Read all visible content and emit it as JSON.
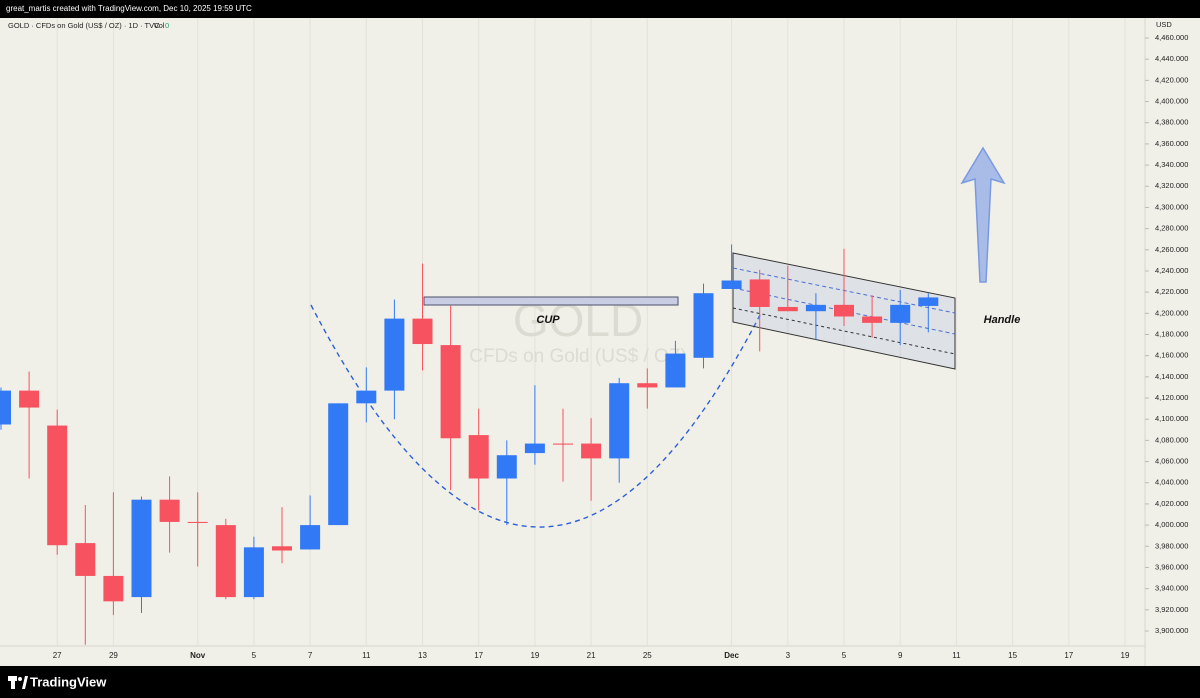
{
  "chart_data": {
    "type": "candlestick",
    "credit": "great_martis created with TradingView.com, Dec 10, 2025 19:59 UTC",
    "legend": "GOLD · CFDs on Gold (US$ / OZ) · 1D · TVC",
    "indicator": "Vol",
    "indicator_value": "0",
    "watermark_symbol": "GOLD",
    "watermark_description": "CFDs on Gold (US$ / OZ)",
    "currency": "USD",
    "brand": "TradingView",
    "annotations": [
      {
        "text": "CUP"
      },
      {
        "text": "Handle"
      }
    ],
    "categories": [
      null,
      null,
      "27",
      null,
      "29",
      null,
      null,
      "Nov",
      null,
      "5",
      null,
      "7",
      null,
      "11",
      null,
      "13",
      null,
      "17",
      null,
      "19",
      null,
      "21",
      null,
      "25",
      null,
      null,
      "Dec",
      null,
      "3",
      null,
      "5",
      null,
      "9",
      null,
      "11",
      null,
      "15",
      null,
      "17",
      null,
      "19"
    ],
    "series": {
      "up_color": "#3179f5",
      "down_color": "#f7525f",
      "open": [
        4095,
        4127,
        4094,
        3983,
        3952,
        3932,
        4024,
        4003,
        4000,
        3932,
        3980,
        3977,
        4000,
        4115,
        4127,
        4195,
        4170,
        4085,
        4044,
        4068,
        4077,
        4077,
        4063,
        4134,
        4130,
        4158,
        4223,
        4232,
        4206,
        4202,
        4208,
        4197,
        4191,
        4207,
        null,
        null,
        null,
        null,
        null,
        null,
        null
      ],
      "high": [
        4130,
        4145,
        4109,
        4019,
        4031,
        4027,
        4046,
        4031,
        4006,
        3989,
        4017,
        4028,
        4115,
        4149,
        4213,
        4247,
        4207,
        4110,
        4080,
        4132,
        4110,
        4101,
        4139,
        4148,
        4174,
        4228,
        4265,
        4241,
        4245,
        4219,
        4261,
        4217,
        4222,
        4219,
        null,
        null,
        null,
        null,
        null,
        null,
        null
      ],
      "low": [
        4090,
        4044,
        3972,
        3887,
        3915,
        3917,
        3974,
        3961,
        3930,
        3930,
        3964,
        3977,
        4000,
        4097,
        4100,
        4146,
        4033,
        4014,
        4000,
        4057,
        4041,
        4023,
        4040,
        4110,
        4130,
        4148,
        4223,
        4164,
        4202,
        4175,
        4188,
        4177,
        4170,
        4182,
        null,
        null,
        null,
        null,
        null,
        null,
        null
      ],
      "close": [
        4127,
        4111,
        3981,
        3952,
        3928,
        4024,
        4003,
        4002,
        3932,
        3979,
        3976,
        4000,
        4115,
        4127,
        4195,
        4171,
        4082,
        4044,
        4066,
        4077,
        4076,
        4063,
        4134,
        4130,
        4162,
        4219,
        4231,
        4206,
        4202,
        4208,
        4197,
        4191,
        4208,
        4215,
        null,
        null,
        null,
        null,
        null,
        null,
        null
      ]
    },
    "ylim": [
      3872.6,
      4478.9
    ],
    "yticks": [
      {
        "value": 3900,
        "label": "3,900.000"
      },
      {
        "value": 3920,
        "label": "3,920.000"
      },
      {
        "value": 3940,
        "label": "3,940.000"
      },
      {
        "value": 3960,
        "label": "3,960.000"
      },
      {
        "value": 3980,
        "label": "3,980.000"
      },
      {
        "value": 4000,
        "label": "4,000.000"
      },
      {
        "value": 4020,
        "label": "4,020.000"
      },
      {
        "value": 4040,
        "label": "4,040.000"
      },
      {
        "value": 4060,
        "label": "4,060.000"
      },
      {
        "value": 4080,
        "label": "4,080.000"
      },
      {
        "value": 4100,
        "label": "4,100.000"
      },
      {
        "value": 4120,
        "label": "4,120.000"
      },
      {
        "value": 4140,
        "label": "4,140.000"
      },
      {
        "value": 4160,
        "label": "4,160.000"
      },
      {
        "value": 4180,
        "label": "4,180.000"
      },
      {
        "value": 4200,
        "label": "4,200.000"
      },
      {
        "value": 4220,
        "label": "4,220.000"
      },
      {
        "value": 4240,
        "label": "4,240.000"
      },
      {
        "value": 4260,
        "label": "4,260.000"
      },
      {
        "value": 4280,
        "label": "4,280.000"
      },
      {
        "value": 4300,
        "label": "4,300.000"
      },
      {
        "value": 4320,
        "label": "4,320.000"
      },
      {
        "value": 4340,
        "label": "4,340.000"
      },
      {
        "value": 4360,
        "label": "4,360.000"
      },
      {
        "value": 4380,
        "label": "4,380.000"
      },
      {
        "value": 4400,
        "label": "4,400.000"
      },
      {
        "value": 4420,
        "label": "4,420.000"
      },
      {
        "value": 4440,
        "label": "4,440.000"
      },
      {
        "value": 4460,
        "label": "4,460.000"
      }
    ],
    "grid": "vertical"
  }
}
